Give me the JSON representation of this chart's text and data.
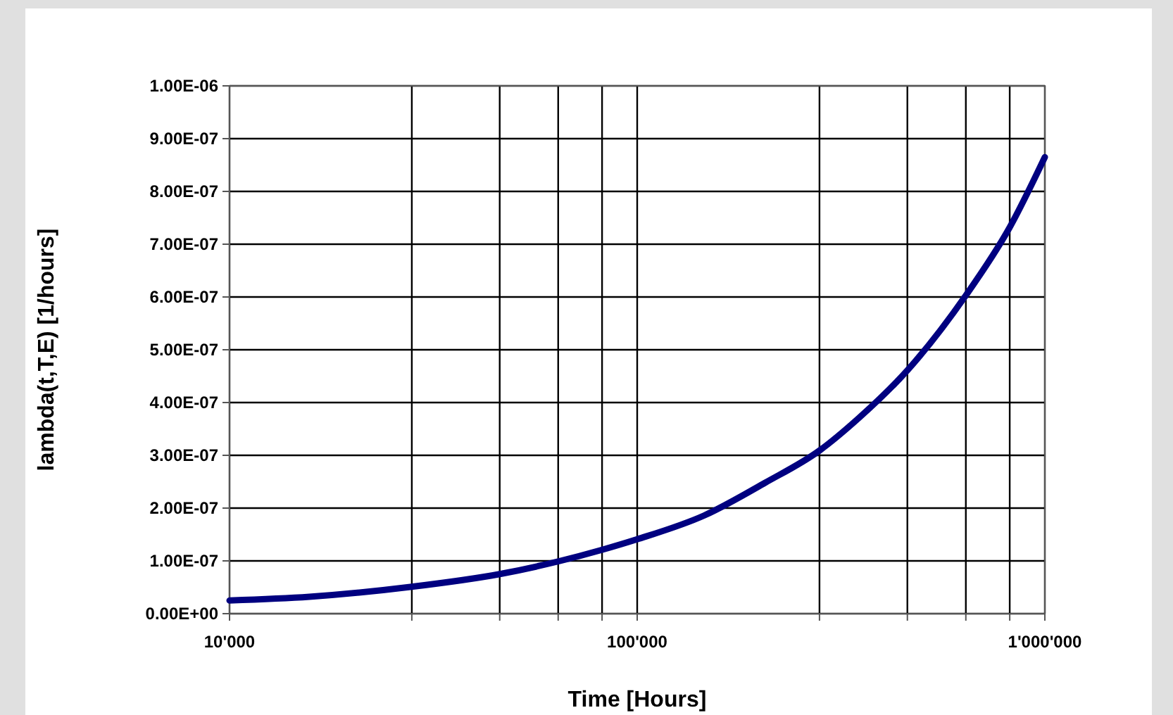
{
  "chart_data": {
    "type": "line",
    "xlabel": "Time [Hours]",
    "ylabel": "lambda(t,T,E) [1/hours]",
    "log": "x",
    "grid": true,
    "marker": "none",
    "line_style": "solid",
    "xlim": [
      10000,
      1000000
    ],
    "xticks": [
      {
        "value": 10000,
        "label": "10'000"
      },
      {
        "value": 28000,
        "label": null
      },
      {
        "value": 46000,
        "label": null
      },
      {
        "value": 64000,
        "label": null
      },
      {
        "value": 82000,
        "label": null
      },
      {
        "value": 100000,
        "label": "100'000"
      },
      {
        "value": 280000,
        "label": null
      },
      {
        "value": 460000,
        "label": null
      },
      {
        "value": 640000,
        "label": null
      },
      {
        "value": 820000,
        "label": null
      },
      {
        "value": 1000000,
        "label": "1'000'000"
      }
    ],
    "ylim": [
      0,
      1e-06
    ],
    "yticks": [
      {
        "value": 0,
        "label": "0.00E+00"
      },
      {
        "value": 1e-07,
        "label": "1.00E-07"
      },
      {
        "value": 2e-07,
        "label": "2.00E-07"
      },
      {
        "value": 3e-07,
        "label": "3.00E-07"
      },
      {
        "value": 4e-07,
        "label": "4.00E-07"
      },
      {
        "value": 5e-07,
        "label": "5.00E-07"
      },
      {
        "value": 6e-07,
        "label": "6.00E-07"
      },
      {
        "value": 7e-07,
        "label": "7.00E-07"
      },
      {
        "value": 8e-07,
        "label": "8.00E-07"
      },
      {
        "value": 9e-07,
        "label": "9.00E-07"
      },
      {
        "value": 1e-06,
        "label": "1.00E-06"
      }
    ],
    "series": [
      {
        "color": "#000080",
        "x": [
          10000,
          15700,
          28000,
          46000,
          64000,
          82000,
          100000,
          146000,
          206000,
          280000,
          350000,
          460000,
          640000,
          820000,
          1000000
        ],
        "values": [
          2.5e-08,
          3.2e-08,
          5.1e-08,
          7.5e-08,
          9.9e-08,
          1.21e-07,
          1.41e-07,
          1.86e-07,
          2.48e-07,
          3.09e-07,
          3.71e-07,
          4.61e-07,
          6.03e-07,
          7.32e-07,
          8.65e-07
        ]
      }
    ]
  }
}
